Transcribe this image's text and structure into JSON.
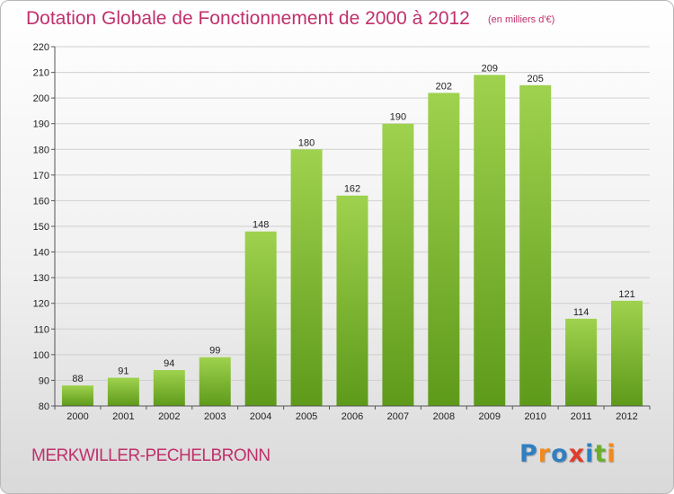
{
  "chart_data": {
    "type": "bar",
    "title": "Dotation Globale de Fonctionnement de 2000 à 2012",
    "subtitle": "(en milliers d'€)",
    "categories": [
      "2000",
      "2001",
      "2002",
      "2003",
      "2004",
      "2005",
      "2006",
      "2007",
      "2008",
      "2009",
      "2010",
      "2011",
      "2012"
    ],
    "values": [
      88,
      91,
      94,
      99,
      148,
      180,
      162,
      190,
      202,
      209,
      205,
      114,
      121
    ],
    "ylim": [
      80,
      220
    ],
    "yticks": [
      80,
      90,
      100,
      110,
      120,
      130,
      140,
      150,
      160,
      170,
      180,
      190,
      200,
      210,
      220
    ],
    "grid": true,
    "bar_color_top": "#9fd24e",
    "bar_color_bottom": "#5e9a1a"
  },
  "location": "MERKWILLER-PECHELBRONN",
  "logo": {
    "text": "Proxiti",
    "letters": [
      {
        "ch": "P",
        "color": "#2f7fc1"
      },
      {
        "ch": "r",
        "color": "#f08a1c"
      },
      {
        "ch": "o",
        "color": "#2f7fc1"
      },
      {
        "ch": "x",
        "color": "#e23b2a"
      },
      {
        "ch": "i",
        "color": "#2f7fc1"
      },
      {
        "ch": "t",
        "color": "#6aae2c"
      },
      {
        "ch": "i",
        "color": "#f08a1c"
      }
    ]
  }
}
